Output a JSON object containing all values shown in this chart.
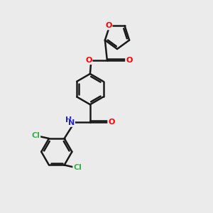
{
  "background_color": "#ebebeb",
  "bond_color": "#1a1a1a",
  "O_color": "#ff0000",
  "N_color": "#2222cc",
  "Cl_color": "#3cb050",
  "bond_lw": 1.8,
  "figsize": [
    3.0,
    3.0
  ],
  "dpi": 100,
  "xlim": [
    0,
    10
  ],
  "ylim": [
    0,
    10
  ]
}
